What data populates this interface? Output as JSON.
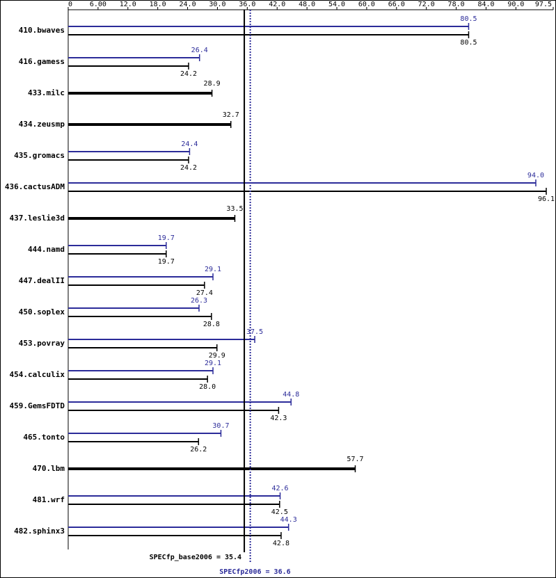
{
  "chart_data": {
    "type": "hbar-pair",
    "categories": [
      "410.bwaves",
      "416.gamess",
      "433.milc",
      "434.zeusmp",
      "435.gromacs",
      "436.cactusADM",
      "437.leslie3d",
      "444.namd",
      "447.dealII",
      "450.soplex",
      "453.povray",
      "454.calculix",
      "459.GemsFDTD",
      "465.tonto",
      "470.lbm",
      "481.wrf",
      "482.sphinx3"
    ],
    "series": [
      {
        "color": "#000000",
        "values": [
          80.5,
          24.2,
          28.9,
          32.7,
          24.2,
          96.1,
          33.5,
          19.7,
          27.4,
          28.8,
          29.9,
          28.0,
          42.3,
          26.2,
          57.7,
          42.5,
          42.8
        ],
        "value_labels": [
          "80.5",
          "24.2",
          "28.9",
          "32.7",
          "24.2",
          "96.1",
          "33.5",
          "19.7",
          "27.4",
          "28.8",
          "29.9",
          "28.0",
          "42.3",
          "26.2",
          "57.7",
          "42.5",
          "42.8"
        ]
      },
      {
        "color": "#2b2b99",
        "values": [
          80.5,
          26.4,
          null,
          null,
          24.4,
          94.0,
          null,
          19.7,
          29.1,
          26.3,
          37.5,
          29.1,
          44.8,
          30.7,
          null,
          42.6,
          44.3
        ],
        "value_labels": [
          "80.5",
          "26.4",
          null,
          null,
          "24.4",
          "94.0",
          null,
          "19.7",
          "29.1",
          "26.3",
          "37.5",
          "29.1",
          "44.8",
          "30.7",
          null,
          "42.6",
          "44.3"
        ]
      }
    ],
    "xlim": [
      0,
      97.5
    ],
    "xticks": [
      0,
      {
        "value": 6,
        "label": "6.00"
      },
      {
        "value": 12,
        "label": "12.0"
      },
      {
        "value": 18,
        "label": "18.0"
      },
      {
        "value": 24,
        "label": "24.0"
      },
      {
        "value": 30,
        "label": "30.0"
      },
      {
        "value": 36,
        "label": "36.0"
      },
      {
        "value": 42,
        "label": "42.0"
      },
      {
        "value": 48,
        "label": "48.0"
      },
      {
        "value": 54,
        "label": "54.0"
      },
      {
        "value": 60,
        "label": "60.0"
      },
      {
        "value": 66,
        "label": "66.0"
      },
      {
        "value": 72,
        "label": "72.0"
      },
      {
        "value": 78,
        "label": "78.0"
      },
      {
        "value": 84,
        "label": "84.0"
      },
      {
        "value": 90,
        "label": "90.0"
      },
      97.5
    ],
    "summary": [
      {
        "value": 35.4,
        "label": "SPECfp_base2006 = 35.4",
        "color": "#000000"
      },
      {
        "value": 36.6,
        "label": "SPECfp2006 = 36.6",
        "color": "#2b2b99"
      }
    ]
  }
}
